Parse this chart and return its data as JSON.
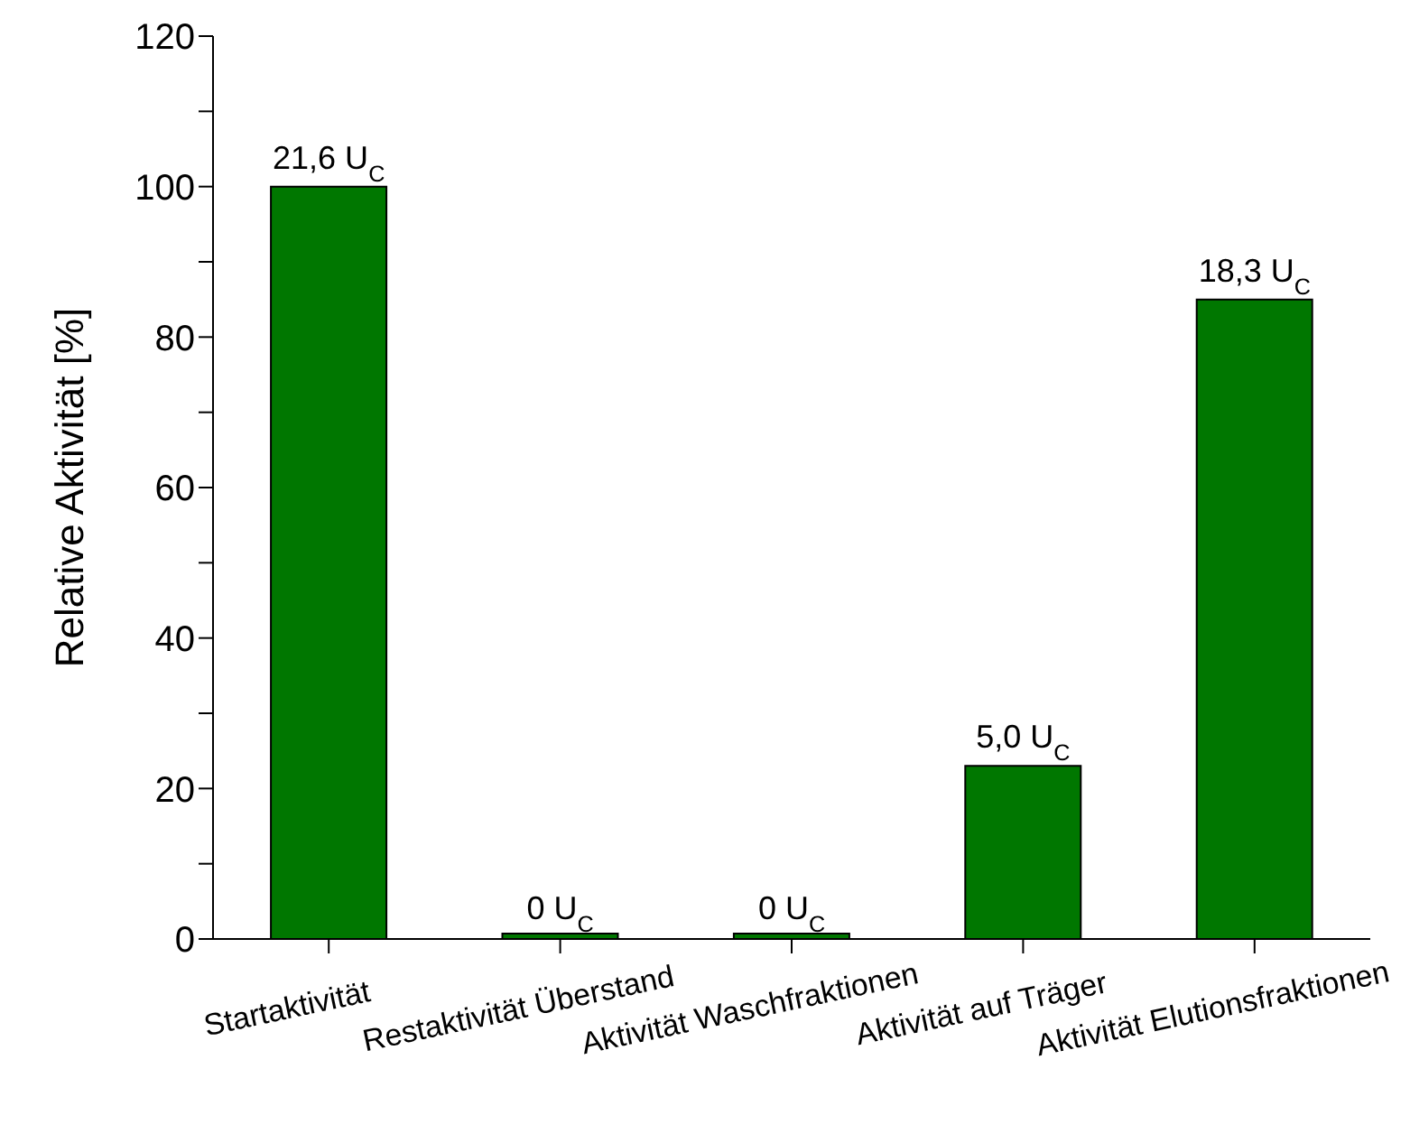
{
  "chart_data": {
    "type": "bar",
    "ylabel": "Relative Aktivität [%]",
    "categories": [
      "Startaktivität",
      "Restaktivität Überstand",
      "Aktivität Waschfraktionen",
      "Aktivität auf Träger",
      "Aktivität Elutionsfraktionen"
    ],
    "values": [
      100,
      0.3,
      0.3,
      23,
      85
    ],
    "annotations": [
      {
        "text": "21,6 U$_{C}$",
        "x": "Startaktivität",
        "y": 100
      },
      {
        "text": "0 U$_{C}$",
        "x": "Restaktivität Überstand",
        "y": 0.3
      },
      {
        "text": "0 U$_{C}$",
        "x": "Aktivität Waschfraktionen",
        "y": 0.3
      },
      {
        "text": "5,0 U$_{C}$",
        "x": "Aktivität auf Träger",
        "y": 23
      },
      {
        "text": "18,3 U$_{C}$",
        "x": "Aktivität Elutionsfraktionen",
        "y": 85
      }
    ],
    "color": "#007700",
    "ylim": [
      0,
      120
    ],
    "yticks": [
      0,
      {
        "value": 10,
        "label": null
      },
      20,
      {
        "value": 30,
        "label": null
      },
      40,
      {
        "value": 50,
        "label": null
      },
      60,
      {
        "value": 70,
        "label": null
      },
      80,
      {
        "value": 90,
        "label": null
      },
      100,
      {
        "value": 110,
        "label": null
      },
      120
    ],
    "grid": false
  }
}
